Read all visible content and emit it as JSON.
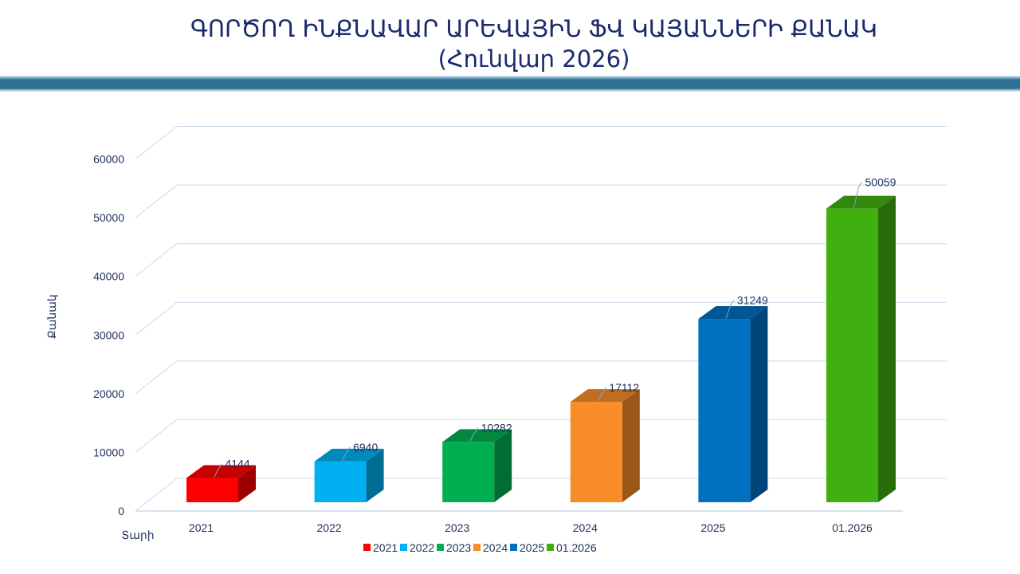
{
  "header": {
    "title": "ԳՈՐԾՈՂ ԻՆՔՆԱՎԱՐ ԱՐԵՎԱՅԻՆ ՖՎ ԿԱՅԱՆՆԵՐԻ ՔԱՆԱԿ",
    "subtitle": "(Հունվար 2026)"
  },
  "chart_data": {
    "type": "bar",
    "style": "3d-column",
    "title": "ԳՈՐԾՈՂ ԻՆՔՆԱՎԱՐ ԱՐԵՎԱՅԻՆ ՖՎ ԿԱՅԱՆՆԵՐԻ ՔԱՆԱԿ (Հունվար 2026)",
    "xlabel": "Տարի",
    "ylabel": "Քանակ",
    "ylim": [
      0,
      60000
    ],
    "yticks": [
      "0",
      "10000",
      "20000",
      "30000",
      "40000",
      "50000",
      "60000"
    ],
    "grid": true,
    "legend": "bottom",
    "categories": [
      "2021",
      "2022",
      "2023",
      "2024",
      "2025",
      "01.2026"
    ],
    "values": [
      4144,
      6940,
      10282,
      17112,
      31249,
      50059
    ],
    "data_labels": [
      "4144",
      "6940",
      "10282",
      "17112",
      "31249",
      "50059"
    ],
    "colors": [
      "#ff0000",
      "#00b0f0",
      "#00b050",
      "#f88c28",
      "#0070c0",
      "#40b010"
    ]
  }
}
